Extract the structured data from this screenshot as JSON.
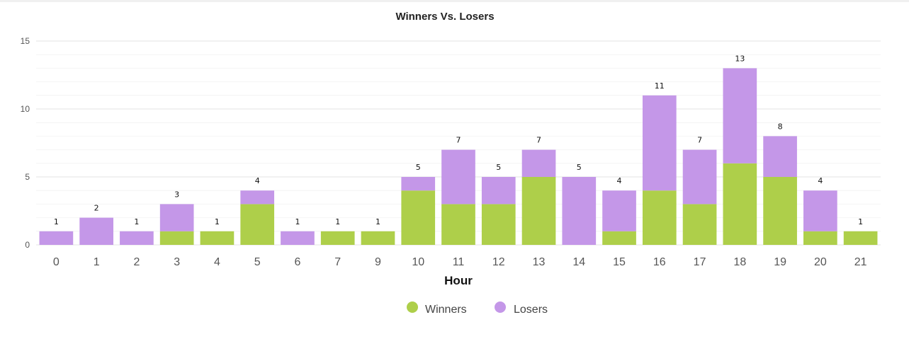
{
  "chart_data": {
    "type": "bar",
    "stacked": true,
    "title": "Winners Vs. Losers",
    "xlabel": "Hour",
    "ylabel": "",
    "ylim": [
      0,
      15
    ],
    "yticks": [
      0,
      5,
      10,
      15
    ],
    "grid": true,
    "legend_position": "bottom-center",
    "categories": [
      "0",
      "1",
      "2",
      "3",
      "4",
      "5",
      "6",
      "7",
      "9",
      "10",
      "11",
      "12",
      "13",
      "14",
      "15",
      "16",
      "17",
      "18",
      "19",
      "20",
      "21"
    ],
    "series": [
      {
        "name": "Winners",
        "color": "#aecf4a",
        "values": [
          0,
          0,
          0,
          1,
          1,
          3,
          0,
          1,
          1,
          4,
          3,
          3,
          5,
          0,
          1,
          4,
          3,
          6,
          5,
          1,
          1
        ]
      },
      {
        "name": "Losers",
        "color": "#c497e8",
        "values": [
          1,
          2,
          1,
          2,
          0,
          1,
          1,
          0,
          0,
          1,
          4,
          2,
          2,
          5,
          3,
          7,
          4,
          7,
          3,
          3,
          0
        ]
      }
    ],
    "totals": [
      "1",
      "2",
      "1",
      "3",
      "1",
      "4",
      "1",
      "1",
      "1",
      "5",
      "7",
      "5",
      "7",
      "5",
      "4",
      "11",
      "7",
      "13",
      "8",
      "4",
      "1"
    ]
  }
}
